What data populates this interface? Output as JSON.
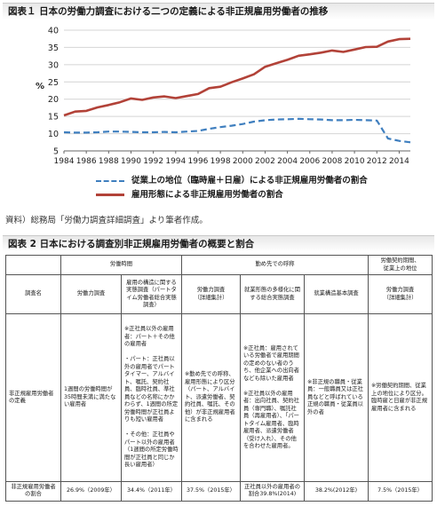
{
  "figure1": {
    "title": "図表１ 日本の労働力調査における二つの定義による非正規雇用労働者の推移",
    "unit_label": "%",
    "legend": [
      {
        "label": "従業上の地位（臨時雇＋日雇）による非正規雇用労働者の割合",
        "color": "#3f7fbf",
        "style": "dashed"
      },
      {
        "label": "雇用形態による非正規雇用労働者の割合",
        "color": "#b24238",
        "style": "solid"
      }
    ],
    "source": "資料）総務局「労働力調査詳細調査」より筆者作成。"
  },
  "chart_data": {
    "type": "line",
    "xlim": [
      1984,
      2015
    ],
    "ylim": [
      5,
      40
    ],
    "x_ticks": [
      1984,
      1986,
      1988,
      1990,
      1992,
      1994,
      1996,
      1998,
      2000,
      2002,
      2004,
      2006,
      2008,
      2010,
      2012,
      2014
    ],
    "y_ticks": [
      5,
      10,
      15,
      20,
      25,
      30,
      35,
      40
    ],
    "grid": "horizontal",
    "legend_position": "bottom",
    "series": [
      {
        "name": "従業上の地位（臨時雇＋日雇）による非正規雇用労働者の割合",
        "color": "#3f7fbf",
        "dash": true,
        "x": [
          1984,
          1985,
          1986,
          1987,
          1988,
          1989,
          1990,
          1991,
          1992,
          1993,
          1994,
          1995,
          1996,
          1997,
          1998,
          1999,
          2000,
          2001,
          2002,
          2003,
          2004,
          2005,
          2006,
          2007,
          2008,
          2009,
          2010,
          2011,
          2012,
          2013,
          2014,
          2015
        ],
        "y": [
          10.4,
          10.3,
          10.3,
          10.4,
          10.6,
          10.6,
          10.5,
          10.4,
          10.4,
          10.5,
          10.4,
          10.6,
          10.8,
          11.4,
          11.9,
          12.3,
          12.8,
          13.5,
          13.9,
          14.1,
          14.2,
          14.3,
          14.2,
          14.1,
          13.9,
          13.9,
          14.0,
          13.9,
          13.8,
          8.6,
          7.9,
          7.5
        ]
      },
      {
        "name": "雇用形態による非正規雇用労働者の割合",
        "color": "#b24238",
        "dash": false,
        "x": [
          1984,
          1985,
          1986,
          1987,
          1988,
          1989,
          1990,
          1991,
          1992,
          1993,
          1994,
          1995,
          1996,
          1997,
          1998,
          1999,
          2000,
          2001,
          2002,
          2003,
          2004,
          2005,
          2006,
          2007,
          2008,
          2009,
          2010,
          2011,
          2012,
          2013,
          2014,
          2015
        ],
        "y": [
          15.3,
          16.4,
          16.6,
          17.6,
          18.3,
          19.1,
          20.2,
          19.8,
          20.5,
          20.8,
          20.3,
          20.9,
          21.5,
          23.2,
          23.6,
          24.9,
          26.0,
          27.2,
          29.4,
          30.4,
          31.4,
          32.6,
          33.0,
          33.5,
          34.1,
          33.7,
          34.4,
          35.1,
          35.2,
          36.7,
          37.4,
          37.5
        ]
      }
    ]
  },
  "figure2": {
    "title": "図表 2 日本における調査別非正規雇用労働者の概要と割合",
    "group_headers": [
      "労働時間",
      "勤め先での呼称",
      "労働契約期間、\n従業上の地位"
    ],
    "column_headers": [
      "調査名",
      "労働力調査",
      "雇用の構造に関する実態調査（パートタイム労働者総合実態調査）",
      "労働力調査\n（詳細集計）",
      "就業形態の多様化に関する総合実態調査",
      "就業構造基本調査",
      "労働力調査\n（詳細集計）"
    ],
    "definition_row": {
      "label": "非正規雇用労働者の定義",
      "cells": [
        "1週間の労働時間が35時間未満に満たない雇用者",
        "※正社員以外の雇用者：パート＋その他の雇用者\n\n・パート：正社員以外の雇用者でパートタイマー、アルバイト、嘱託、契約社員、臨時社員、準社員などの名称にかかわらず、1週間の所定労働時間が正社員よりも短い雇用者\n\n・その他：正社員やパート以外の雇用者（1週間の所定労働時間が正社員と同じか長い雇用者）",
        "※勤め先での呼称、雇用形態により区分（パート、アルバイト、派遣労働者、契約社員、嘱託、その他）が非正規雇用者に含まれる",
        "※正社員：雇用されている労働者で雇用期間の定めのない者のうち、他企業への出向者なども除いた雇用者\n\n※正社員以外の雇用者：出向社員、契約社員（専門職）、嘱託社員（再雇用者）、「パートタイム雇用者、臨時雇用者、派遣労働者（受け入れ）、その他を合わせた雇用者。",
        "※非正規の職員・従業員：一般職員又は正社員などと呼ばれている正規の職員・従業員以外の者",
        "※労働契約期間、従業上の地位により区分。臨時雇と日雇が非正規雇用者に含まれる"
      ]
    },
    "share_row": {
      "label": "非正規雇用労働者の割合",
      "cells": [
        "26.9%（2009年）",
        "34.4%（2011年）",
        "37.5%（2015年）",
        "正社員以外の雇用者の割合39.8%(2014)",
        "38.2%(2012年)",
        "7.5%（2015年）"
      ]
    }
  }
}
